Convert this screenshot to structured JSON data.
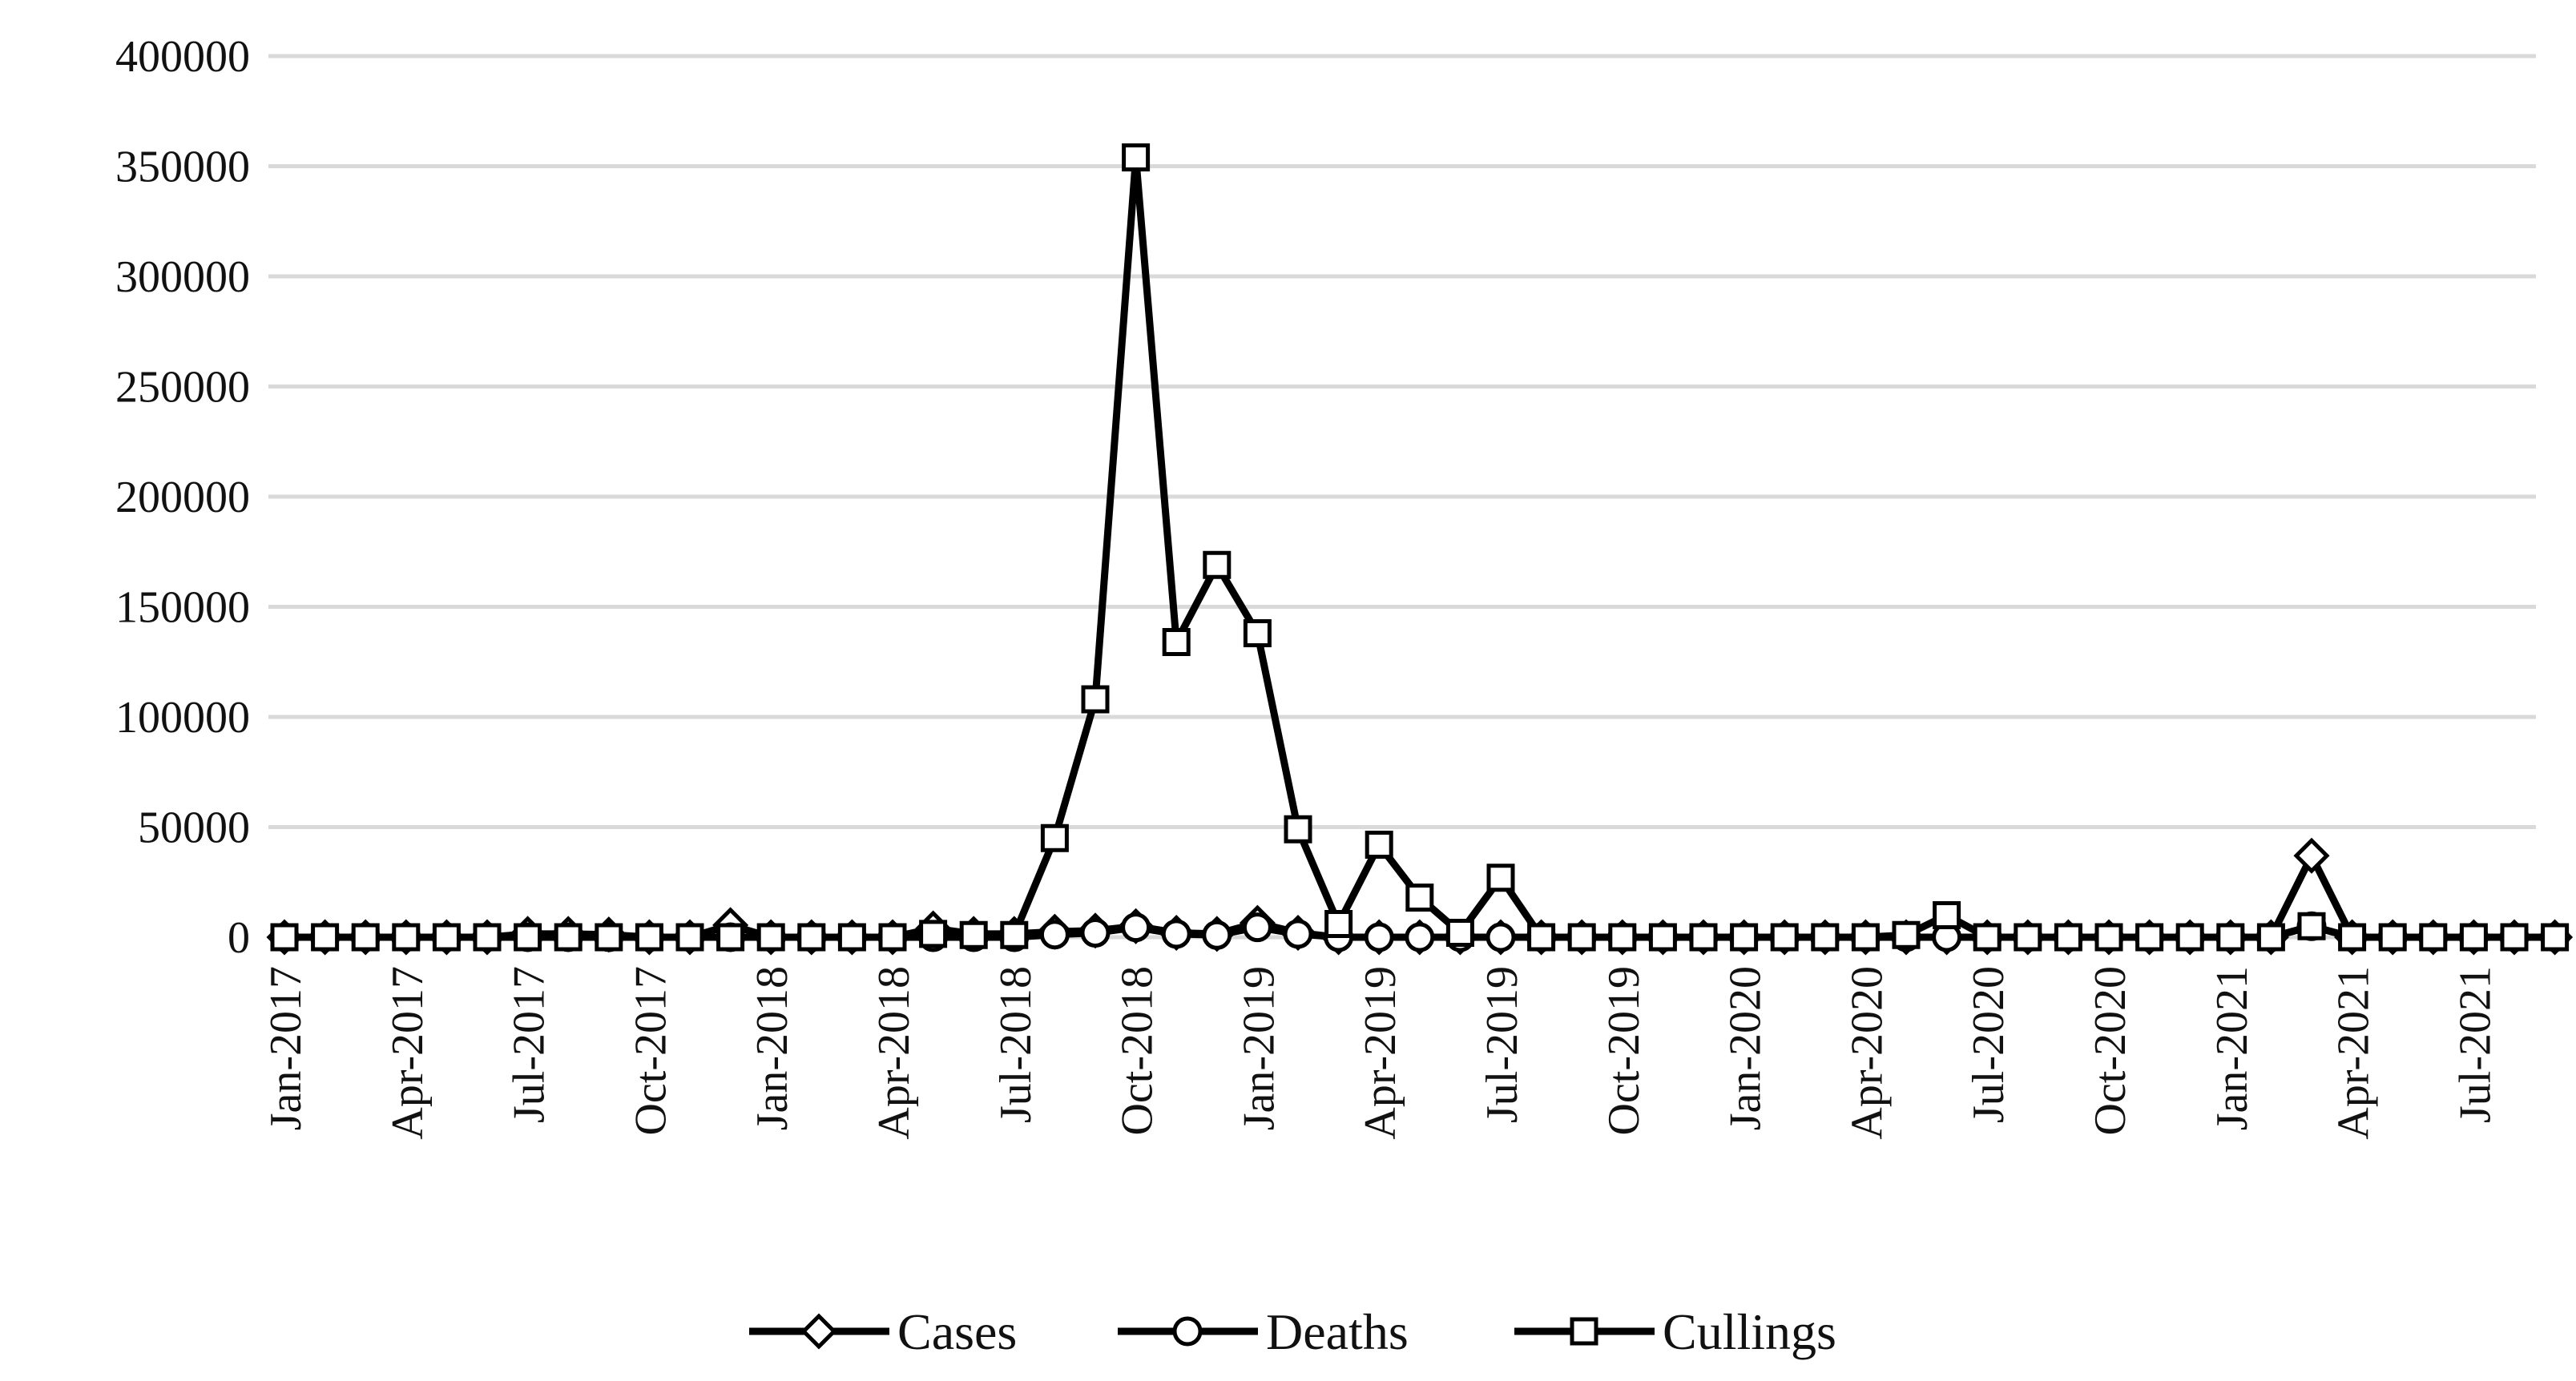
{
  "chart_data": {
    "type": "line",
    "title": "",
    "xlabel": "",
    "ylabel": "",
    "ylim": [
      0,
      400000
    ],
    "yticks": [
      0,
      50000,
      100000,
      150000,
      200000,
      250000,
      300000,
      350000,
      400000
    ],
    "ytick_labels": [
      "0",
      "50000",
      "100000",
      "150000",
      "200000",
      "250000",
      "300000",
      "350000",
      "400000"
    ],
    "grid": "horizontal",
    "legend_position": "bottom",
    "colors": {
      "line": "#000000",
      "grid": "#d9d9d9",
      "marker_fill": "#ffffff"
    },
    "x": [
      "Jan-2017",
      "Feb-2017",
      "Mar-2017",
      "Apr-2017",
      "May-2017",
      "Jun-2017",
      "Jul-2017",
      "Aug-2017",
      "Sep-2017",
      "Oct-2017",
      "Nov-2017",
      "Dec-2017",
      "Jan-2018",
      "Feb-2018",
      "Mar-2018",
      "Apr-2018",
      "May-2018",
      "Jun-2018",
      "Jul-2018",
      "Aug-2018",
      "Sep-2018",
      "Oct-2018",
      "Nov-2018",
      "Dec-2018",
      "Jan-2019",
      "Feb-2019",
      "Mar-2019",
      "Apr-2019",
      "May-2019",
      "Jun-2019",
      "Jul-2019",
      "Aug-2019",
      "Sep-2019",
      "Oct-2019",
      "Nov-2019",
      "Dec-2019",
      "Jan-2020",
      "Feb-2020",
      "Mar-2020",
      "Apr-2020",
      "May-2020",
      "Jun-2020",
      "Jul-2020",
      "Aug-2020",
      "Sep-2020",
      "Oct-2020",
      "Nov-2020",
      "Dec-2020",
      "Jan-2021",
      "Feb-2021",
      "Mar-2021",
      "Apr-2021",
      "May-2021",
      "Jun-2021",
      "Jul-2021",
      "Aug-2021",
      "Sep-2021"
    ],
    "xtick_labels": [
      "Jan-2017",
      "Apr-2017",
      "Jul-2017",
      "Oct-2017",
      "Jan-2018",
      "Apr-2018",
      "Jul-2018",
      "Oct-2018",
      "Jan-2019",
      "Apr-2019",
      "Jul-2019",
      "Oct-2019",
      "Jan-2020",
      "Apr-2020",
      "Jul-2020",
      "Oct-2020",
      "Jan-2021",
      "Apr-2021",
      "Jul-2021"
    ],
    "series": [
      {
        "name": "Cases",
        "marker": "diamond",
        "values": [
          0,
          0,
          0,
          0,
          0,
          0,
          1500,
          1500,
          1200,
          0,
          0,
          5500,
          0,
          0,
          0,
          0,
          4000,
          1500,
          1500,
          2500,
          3000,
          5000,
          2000,
          1500,
          6500,
          2000,
          0,
          0,
          0,
          0,
          0,
          0,
          0,
          0,
          0,
          0,
          0,
          0,
          0,
          0,
          0,
          0,
          0,
          0,
          0,
          0,
          0,
          0,
          0,
          0,
          37000,
          0,
          0,
          0,
          0,
          0,
          0
        ]
      },
      {
        "name": "Deaths",
        "marker": "circle",
        "values": [
          0,
          0,
          0,
          0,
          0,
          0,
          0,
          0,
          0,
          0,
          0,
          0,
          0,
          0,
          0,
          0,
          0,
          0,
          0,
          1200,
          2000,
          4500,
          1500,
          1000,
          4500,
          1500,
          0,
          0,
          0,
          0,
          0,
          0,
          0,
          0,
          0,
          0,
          0,
          0,
          0,
          0,
          0,
          0,
          0,
          0,
          0,
          0,
          0,
          0,
          0,
          0,
          5000,
          0,
          0,
          0,
          0,
          0,
          0
        ]
      },
      {
        "name": "Cullings",
        "marker": "square",
        "values": [
          0,
          0,
          0,
          0,
          0,
          0,
          0,
          0,
          0,
          0,
          0,
          0,
          0,
          0,
          0,
          0,
          1500,
          1000,
          1000,
          45000,
          108000,
          354000,
          134000,
          169000,
          138000,
          49000,
          6000,
          42000,
          18000,
          2000,
          27000,
          0,
          0,
          0,
          0,
          0,
          0,
          0,
          0,
          0,
          1000,
          10000,
          0,
          0,
          0,
          0,
          0,
          0,
          0,
          0,
          5000,
          0,
          0,
          0,
          0,
          0,
          0
        ]
      }
    ]
  }
}
